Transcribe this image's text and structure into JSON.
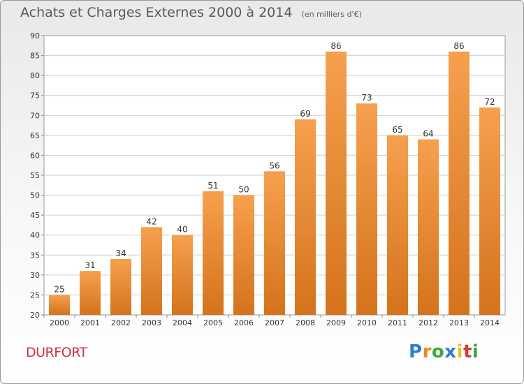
{
  "chart_data": {
    "type": "bar",
    "title": "Achats et Charges Externes 2000 à 2014",
    "unit": "(en milliers d'€)",
    "categories": [
      "2000",
      "2001",
      "2002",
      "2003",
      "2004",
      "2005",
      "2006",
      "2007",
      "2008",
      "2009",
      "2010",
      "2011",
      "2012",
      "2013",
      "2014"
    ],
    "values": [
      25,
      31,
      34,
      42,
      40,
      51,
      50,
      56,
      69,
      86,
      73,
      65,
      64,
      86,
      72
    ],
    "ylim": [
      20,
      90
    ],
    "yticks": [
      20,
      25,
      30,
      35,
      40,
      45,
      50,
      55,
      60,
      65,
      70,
      75,
      80,
      85,
      90
    ],
    "grid": true,
    "bar_color_top": "#f6a04e",
    "bar_color_bottom": "#d4731c",
    "data_labels": true
  },
  "footer": {
    "commune": "DURFORT",
    "logo_letters": [
      {
        "char": "P",
        "color": "#2a7fd0"
      },
      {
        "char": "r",
        "color": "#f08a18"
      },
      {
        "char": "o",
        "color": "#3aa83a"
      },
      {
        "char": "x",
        "color": "#2a7fd0"
      },
      {
        "char": "i",
        "color": "#e8c020"
      },
      {
        "char": "t",
        "color": "#d83a3a"
      },
      {
        "char": "i",
        "color": "#3aa83a"
      }
    ]
  }
}
